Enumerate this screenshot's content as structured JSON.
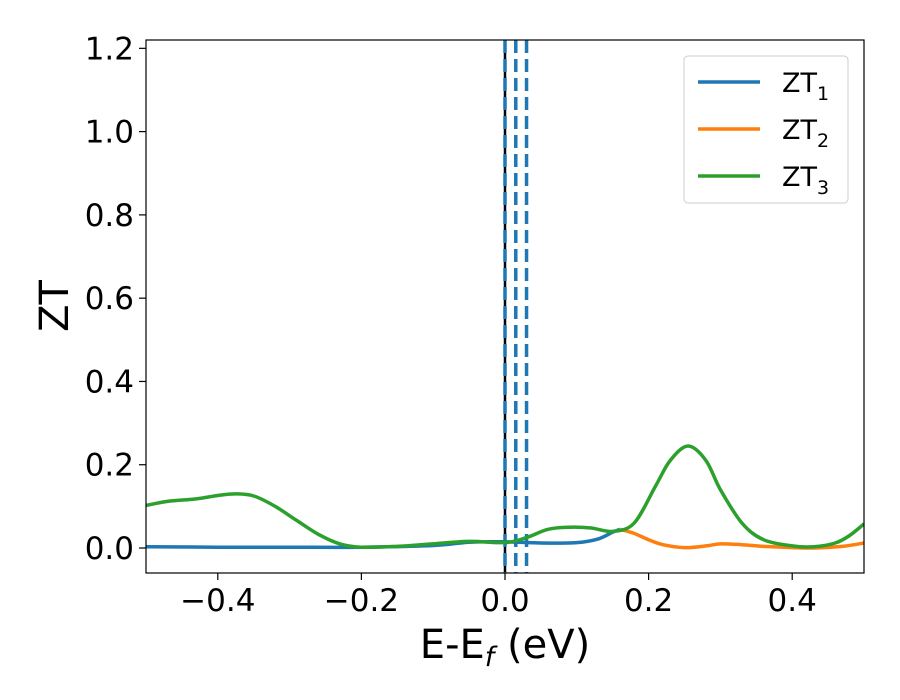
{
  "chart_data": {
    "type": "line",
    "xlabel": "E-E",
    "xlabel_subscript": "f",
    "xlabel_unit": " (eV)",
    "ylabel": "ZT",
    "xlim": [
      -0.5,
      0.5
    ],
    "ylim": [
      -0.06,
      1.22
    ],
    "x_ticks": [
      -0.4,
      -0.2,
      0.0,
      0.2,
      0.4
    ],
    "x_tick_labels": [
      "−0.4",
      "−0.2",
      "0.0",
      "0.2",
      "0.4"
    ],
    "y_ticks": [
      0.0,
      0.2,
      0.4,
      0.6,
      0.8,
      1.0,
      1.2
    ],
    "y_tick_labels": [
      "0.0",
      "0.2",
      "0.4",
      "0.6",
      "0.8",
      "1.0",
      "1.2"
    ],
    "grid": false,
    "legend_position": "top-right",
    "vertical_lines": [
      {
        "x": 0.0,
        "style": "solid",
        "color": "#000000"
      },
      {
        "x": 0.0,
        "style": "dashed",
        "color": "#1f77b4"
      },
      {
        "x": 0.015,
        "style": "dashed",
        "color": "#1f77b4"
      },
      {
        "x": 0.03,
        "style": "dashed",
        "color": "#1f77b4"
      }
    ],
    "series": [
      {
        "name": "ZT",
        "name_subscript": "1",
        "color": "#1f77b4",
        "x": [
          -0.5,
          -0.4,
          -0.3,
          -0.2,
          -0.1,
          -0.05,
          0.0,
          0.05,
          0.1,
          0.13,
          0.15,
          0.16
        ],
        "y": [
          0.003,
          0.002,
          0.002,
          0.002,
          0.006,
          0.014,
          0.015,
          0.012,
          0.013,
          0.022,
          0.038,
          0.045
        ]
      },
      {
        "name": "ZT",
        "name_subscript": "2",
        "color": "#ff7f0e",
        "x": [
          0.16,
          0.18,
          0.2,
          0.22,
          0.25,
          0.28,
          0.3,
          0.33,
          0.36,
          0.4,
          0.43,
          0.47,
          0.5
        ],
        "y": [
          0.045,
          0.035,
          0.02,
          0.008,
          0.001,
          0.005,
          0.01,
          0.008,
          0.004,
          0.001,
          0.0,
          0.004,
          0.012
        ]
      },
      {
        "name": "ZT",
        "name_subscript": "3",
        "color": "#2ca02c",
        "x": [
          -0.5,
          -0.47,
          -0.43,
          -0.4,
          -0.375,
          -0.35,
          -0.32,
          -0.29,
          -0.26,
          -0.23,
          -0.2,
          -0.15,
          -0.1,
          -0.05,
          0.0,
          0.03,
          0.06,
          0.09,
          0.12,
          0.15,
          0.18,
          0.21,
          0.23,
          0.255,
          0.28,
          0.3,
          0.33,
          0.36,
          0.4,
          0.43,
          0.46,
          0.48,
          0.5
        ],
        "y": [
          0.102,
          0.112,
          0.118,
          0.126,
          0.13,
          0.125,
          0.1,
          0.066,
          0.033,
          0.01,
          0.002,
          0.004,
          0.01,
          0.016,
          0.013,
          0.025,
          0.045,
          0.05,
          0.048,
          0.04,
          0.06,
          0.15,
          0.21,
          0.245,
          0.21,
          0.14,
          0.06,
          0.02,
          0.005,
          0.003,
          0.012,
          0.03,
          0.058
        ]
      }
    ]
  }
}
